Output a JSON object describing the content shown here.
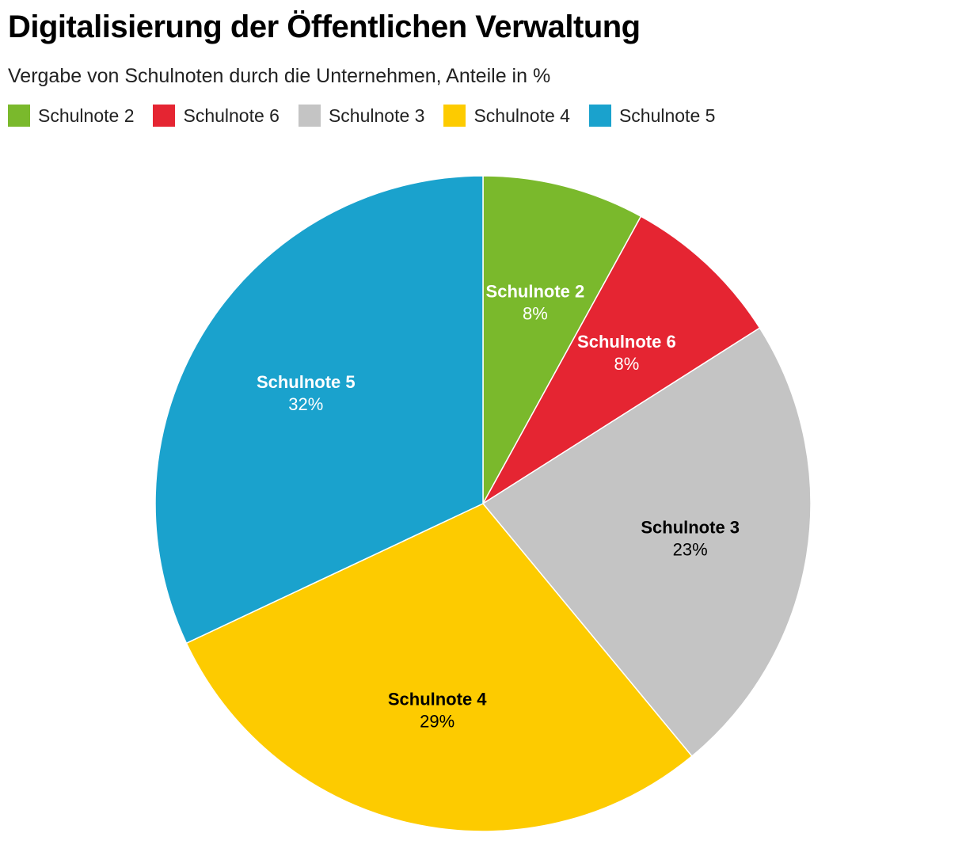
{
  "title": "Digitalisierung der Öffentlichen Verwaltung",
  "subtitle": "Vergabe von Schulnoten durch die Unternehmen, Anteile in %",
  "legend": [
    {
      "label": "Schulnote 2",
      "color": "#7ab92c"
    },
    {
      "label": "Schulnote 6",
      "color": "#e52532"
    },
    {
      "label": "Schulnote 3",
      "color": "#c4c4c4"
    },
    {
      "label": "Schulnote 4",
      "color": "#fdcb00"
    },
    {
      "label": "Schulnote 5",
      "color": "#1aa2cd"
    }
  ],
  "chart_data": {
    "type": "pie",
    "title": "Digitalisierung der Öffentlichen Verwaltung",
    "subtitle": "Vergabe von Schulnoten durch die Unternehmen, Anteile in %",
    "legend_position": "top-left",
    "slices": [
      {
        "label": "Schulnote 2",
        "value": 8,
        "display": "8%",
        "color": "#7ab92c",
        "text_color": "#ffffff"
      },
      {
        "label": "Schulnote 6",
        "value": 8,
        "display": "8%",
        "color": "#e52532",
        "text_color": "#ffffff"
      },
      {
        "label": "Schulnote 3",
        "value": 23,
        "display": "23%",
        "color": "#c4c4c4",
        "text_color": "#000000"
      },
      {
        "label": "Schulnote 4",
        "value": 29,
        "display": "29%",
        "color": "#fdcb00",
        "text_color": "#000000"
      },
      {
        "label": "Schulnote 5",
        "value": 32,
        "display": "32%",
        "color": "#1aa2cd",
        "text_color": "#ffffff"
      }
    ]
  }
}
